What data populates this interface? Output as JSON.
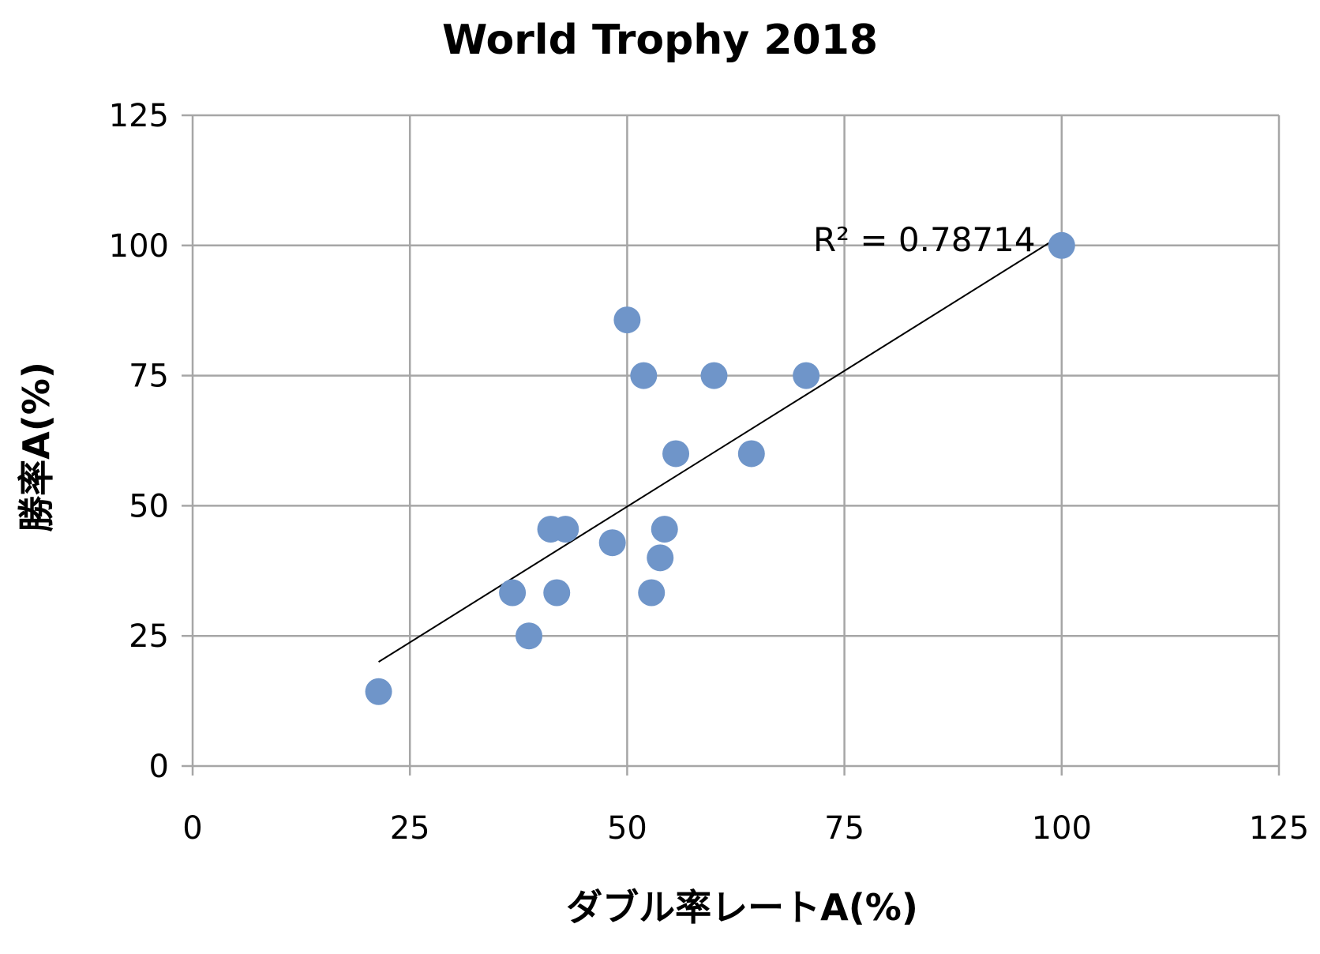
{
  "chart_data": {
    "type": "scatter",
    "title": "World Trophy 2018",
    "xlabel": "ダブル率レートA(%)",
    "ylabel": "勝率A(%)",
    "xlim": [
      0,
      125
    ],
    "ylim": [
      0,
      125
    ],
    "xticks": [
      0,
      25,
      50,
      75,
      100,
      125
    ],
    "yticks": [
      0,
      25,
      50,
      75,
      100,
      125
    ],
    "grid": true,
    "legend": "none",
    "marker_color": "#6f95c9",
    "trendline_color": "#000000",
    "series": [
      {
        "points": [
          {
            "x": 21.4,
            "y": 14.3
          },
          {
            "x": 36.8,
            "y": 33.3
          },
          {
            "x": 38.7,
            "y": 25.0
          },
          {
            "x": 41.2,
            "y": 45.5
          },
          {
            "x": 41.9,
            "y": 33.3
          },
          {
            "x": 42.9,
            "y": 45.5
          },
          {
            "x": 48.3,
            "y": 42.9
          },
          {
            "x": 50.0,
            "y": 85.7
          },
          {
            "x": 51.9,
            "y": 75.0
          },
          {
            "x": 52.8,
            "y": 33.3
          },
          {
            "x": 53.8,
            "y": 40.0
          },
          {
            "x": 54.3,
            "y": 45.5
          },
          {
            "x": 55.6,
            "y": 60.0
          },
          {
            "x": 60.0,
            "y": 75.0
          },
          {
            "x": 64.3,
            "y": 60.0
          },
          {
            "x": 70.6,
            "y": 75.0
          },
          {
            "x": 100.0,
            "y": 100.0
          }
        ]
      }
    ],
    "trendline": {
      "type": "linear",
      "x_range": [
        21.4,
        100.0
      ],
      "y_range": [
        20.0,
        102.0
      ],
      "label": "R² = 0.78714"
    }
  }
}
